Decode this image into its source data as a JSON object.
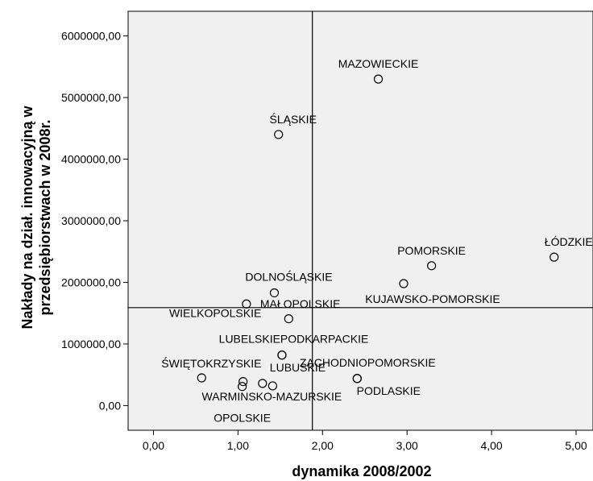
{
  "chart_data": {
    "type": "scatter",
    "xlabel": "dynamika 2008/2002",
    "ylabel_lines": [
      "Nakłady na dział. innowacyjną w",
      "przedsiębiorstwach w 2008r."
    ],
    "xlim": [
      -0.3,
      5.2
    ],
    "ylim": [
      -400000,
      6400000
    ],
    "x_ticks": [
      0,
      1,
      2,
      3,
      4,
      5
    ],
    "x_tick_labels": [
      "0,00",
      "1,00",
      "2,00",
      "3,00",
      "4,00",
      "5,00"
    ],
    "y_ticks": [
      0,
      1000000,
      2000000,
      3000000,
      4000000,
      5000000,
      6000000
    ],
    "y_tick_labels": [
      "0,00",
      "1000000,00",
      "2000000,00",
      "3000000,00",
      "4000000,00",
      "5000000,00",
      "6000000,00"
    ],
    "reference_lines": {
      "x": 1.88,
      "y": 1590000
    },
    "plot_background": "#f0f0f0",
    "marker": "open-circle",
    "grid": false,
    "points": [
      {
        "label": "MAZOWIECKIE",
        "x": 2.66,
        "y": 5300000,
        "label_align": "middle",
        "label_dx": 0,
        "label_dy": -14
      },
      {
        "label": "ŚLĄSKIE",
        "x": 1.48,
        "y": 4400000,
        "label_align": "middle",
        "label_dx": 18,
        "label_dy": -14
      },
      {
        "label": "ŁÓDZKIE",
        "x": 4.74,
        "y": 2410000,
        "label_align": "middle",
        "label_dx": 18,
        "label_dy": -14
      },
      {
        "label": "POMORSKIE",
        "x": 3.29,
        "y": 2270000,
        "label_align": "middle",
        "label_dx": 0,
        "label_dy": -14
      },
      {
        "label": "KUJAWSKO-POMORSKIE",
        "x": 2.96,
        "y": 1980000,
        "label_align": "middle",
        "label_dx": 36,
        "label_dy": 24
      },
      {
        "label": "DOLNOŚLĄSKIE",
        "x": 1.43,
        "y": 1830000,
        "label_align": "middle",
        "label_dx": 18,
        "label_dy": -15
      },
      {
        "label": "MAŁOPOLSKIE",
        "x": 1.1,
        "y": 1650000,
        "label_align": "start",
        "label_dx": 17,
        "label_dy": 5
      },
      {
        "label": "WIELKOPOLSKIE",
        "x": 1.6,
        "y": 1410000,
        "label_align": "end",
        "label_dx": -34,
        "label_dy": -2
      },
      {
        "label": "LUBELSKIE",
        "x": 1.52,
        "y": 820000,
        "label_align": "end",
        "label_dx": -2,
        "label_dy": -15
      },
      {
        "label": "PODKARPACKIE",
        "x": 1.52,
        "y": 820000,
        "label_align": "start",
        "label_dx": -2,
        "label_dy": -15
      },
      {
        "label": "ŚWIĘTOKRZYSKIE",
        "x": 0.57,
        "y": 450000,
        "label_align": "start",
        "label_dx": -50,
        "label_dy": -13
      },
      {
        "label": "LUBUSKIE",
        "x": 1.29,
        "y": 360000,
        "label_align": "start",
        "label_dx": 9,
        "label_dy": -15
      },
      {
        "label": "ZACHODNIOPOMORSKIE",
        "x": 2.41,
        "y": 440000,
        "label_align": "middle",
        "label_dx": 13,
        "label_dy": -15
      },
      {
        "label": "PODLASKIE",
        "x": 2.41,
        "y": 440000,
        "label_align": "middle",
        "label_dx": 39,
        "label_dy": 20
      },
      {
        "label": "WARMINSKO-MAZURSKIE",
        "x": 1.41,
        "y": 320000,
        "label_align": "middle",
        "label_dx": -1,
        "label_dy": 18
      },
      {
        "label": "OPOLSKIE",
        "x": 1.05,
        "y": 310000,
        "label_align": "middle",
        "label_dx": 0,
        "label_dy": 44
      },
      {
        "label": "",
        "x": 1.06,
        "y": 390000
      }
    ]
  }
}
